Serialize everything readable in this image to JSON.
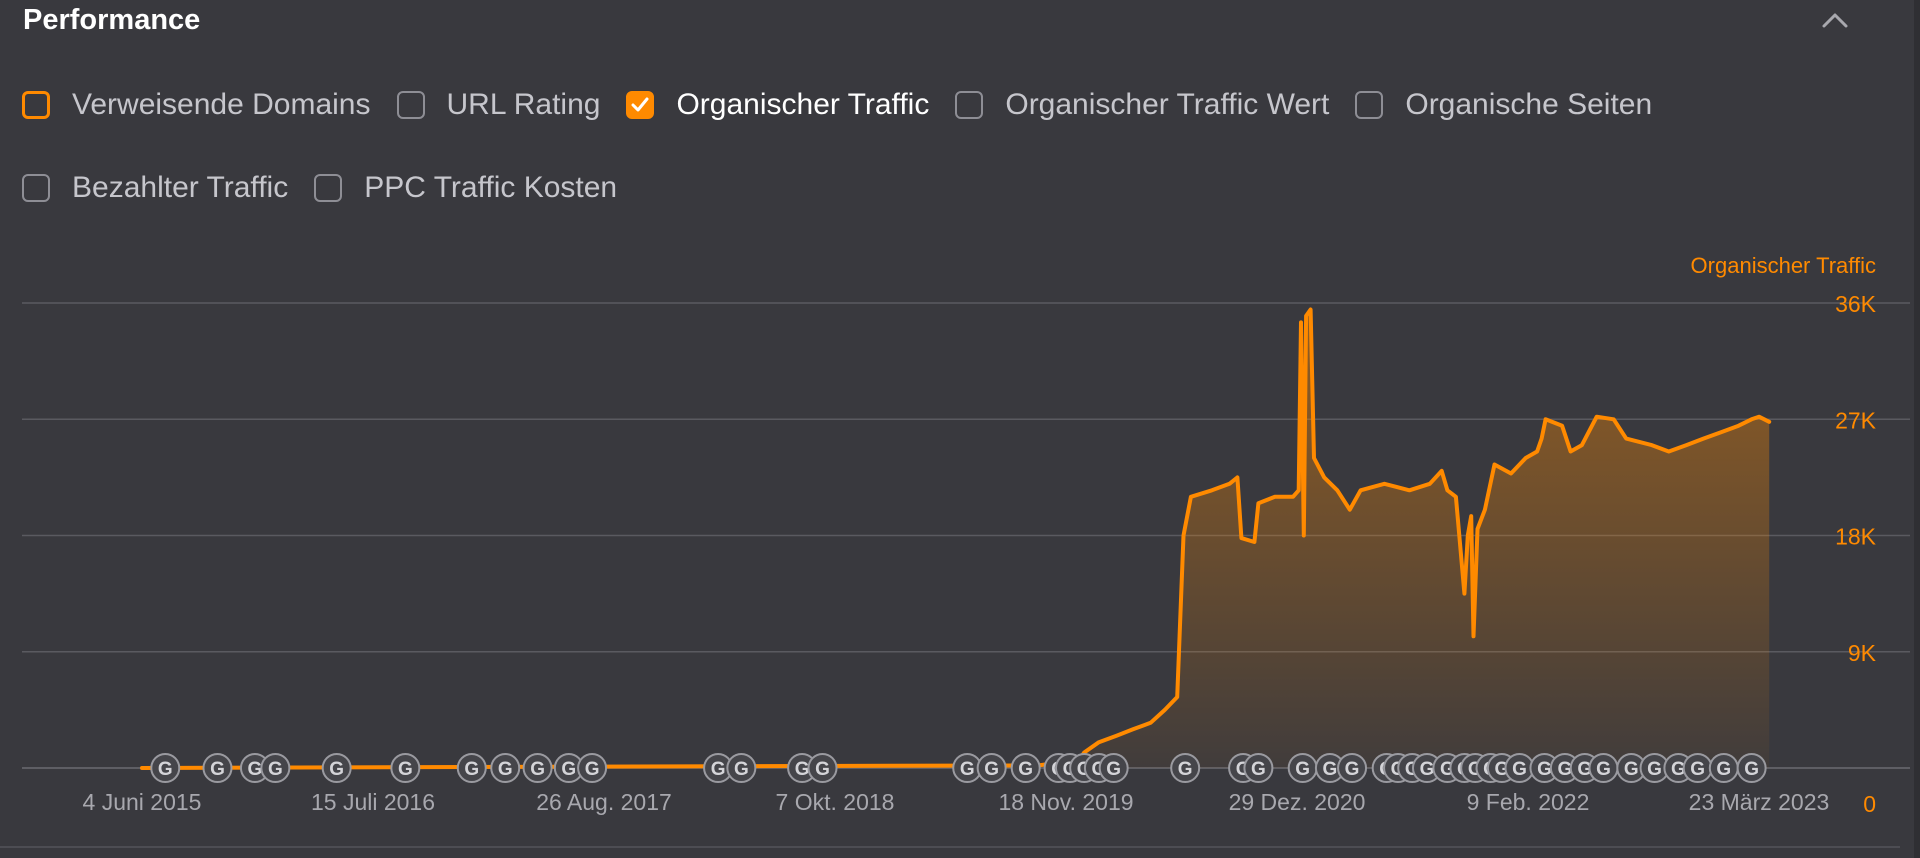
{
  "header": {
    "title": "Performance",
    "collapse_icon": "chevron-up-icon"
  },
  "metrics": [
    {
      "label": "Verweisende Domains",
      "checked": false,
      "focused": true
    },
    {
      "label": "URL Rating",
      "checked": false
    },
    {
      "label": "Organischer Traffic",
      "checked": true
    },
    {
      "label": "Organischer Traffic Wert",
      "checked": false
    },
    {
      "label": "Organische Seiten",
      "checked": false
    },
    {
      "label": "Bezahlter Traffic",
      "checked": false
    },
    {
      "label": "PPC Traffic Kosten",
      "checked": false
    }
  ],
  "colors": {
    "accent": "#ff8a00",
    "background": "#39393e",
    "grid": "#5a5a60",
    "axis_text": "#a8a8ae",
    "marker": "#9a9aa0"
  },
  "chart_data": {
    "type": "area",
    "series": [
      {
        "name": "Organischer Traffic",
        "color": "#ff8a00"
      }
    ],
    "y_ticks": [
      "36K",
      "27K",
      "18K",
      "9K",
      "0"
    ],
    "y_tick_values": [
      36000,
      27000,
      18000,
      9000,
      0
    ],
    "ylim": [
      0,
      36000
    ],
    "x_ticks": [
      "4 Juni 2015",
      "15 Juli 2016",
      "26 Aug. 2017",
      "7 Okt. 2018",
      "18 Nov. 2019",
      "29 Dez. 2020",
      "9 Feb. 2022",
      "23 März 2023"
    ],
    "x_tick_dates": [
      "2015-06-04",
      "2016-07-15",
      "2017-08-26",
      "2018-10-07",
      "2019-11-18",
      "2020-12-29",
      "2022-02-09",
      "2023-03-23"
    ],
    "points": [
      [
        "2015-06-04",
        0
      ],
      [
        "2017-06-01",
        100
      ],
      [
        "2019-10-01",
        200
      ],
      [
        "2019-11-18",
        500
      ],
      [
        "2019-12-05",
        200
      ],
      [
        "2019-12-20",
        1200
      ],
      [
        "2020-01-15",
        2000
      ],
      [
        "2020-02-15",
        2500
      ],
      [
        "2020-03-15",
        3000
      ],
      [
        "2020-04-15",
        3500
      ],
      [
        "2020-05-10",
        4500
      ],
      [
        "2020-06-01",
        5500
      ],
      [
        "2020-06-12",
        18000
      ],
      [
        "2020-06-25",
        21000
      ],
      [
        "2020-08-01",
        21500
      ],
      [
        "2020-09-01",
        22000
      ],
      [
        "2020-09-15",
        22500
      ],
      [
        "2020-09-22",
        17800
      ],
      [
        "2020-10-15",
        17500
      ],
      [
        "2020-10-22",
        20500
      ],
      [
        "2020-11-20",
        21000
      ],
      [
        "2020-12-22",
        21000
      ],
      [
        "2021-01-01",
        21500
      ],
      [
        "2021-01-05",
        34500
      ],
      [
        "2021-01-10",
        18000
      ],
      [
        "2021-01-14",
        35000
      ],
      [
        "2021-01-22",
        35500
      ],
      [
        "2021-01-28",
        24000
      ],
      [
        "2021-02-15",
        22500
      ],
      [
        "2021-03-10",
        21500
      ],
      [
        "2021-04-01",
        20000
      ],
      [
        "2021-04-20",
        21500
      ],
      [
        "2021-06-01",
        22000
      ],
      [
        "2021-07-15",
        21500
      ],
      [
        "2021-08-20",
        22000
      ],
      [
        "2021-09-10",
        23000
      ],
      [
        "2021-09-20",
        21500
      ],
      [
        "2021-10-05",
        21000
      ],
      [
        "2021-10-20",
        13500
      ],
      [
        "2021-10-26",
        18000
      ],
      [
        "2021-11-01",
        19500
      ],
      [
        "2021-11-05",
        10200
      ],
      [
        "2021-11-12",
        18500
      ],
      [
        "2021-11-25",
        20000
      ],
      [
        "2021-12-12",
        23500
      ],
      [
        "2022-01-10",
        22800
      ],
      [
        "2022-02-05",
        24000
      ],
      [
        "2022-02-25",
        24500
      ],
      [
        "2022-03-05",
        25500
      ],
      [
        "2022-03-12",
        27000
      ],
      [
        "2022-04-10",
        26500
      ],
      [
        "2022-04-25",
        24500
      ],
      [
        "2022-05-15",
        25000
      ],
      [
        "2022-06-10",
        27200
      ],
      [
        "2022-07-10",
        27000
      ],
      [
        "2022-08-01",
        25500
      ],
      [
        "2022-09-15",
        25000
      ],
      [
        "2022-10-15",
        24500
      ],
      [
        "2022-11-15",
        25000
      ],
      [
        "2022-12-15",
        25500
      ],
      [
        "2023-01-15",
        26000
      ],
      [
        "2023-02-15",
        26500
      ],
      [
        "2023-03-10",
        27000
      ],
      [
        "2023-03-23",
        27200
      ],
      [
        "2023-04-10",
        26800
      ]
    ],
    "event_markers": {
      "icon": "google-update-icon",
      "dates": [
        "2015-07-15",
        "2015-10-15",
        "2015-12-20",
        "2016-01-25",
        "2016-05-12",
        "2016-09-10",
        "2017-01-05",
        "2017-03-05",
        "2017-05-01",
        "2017-06-25",
        "2017-08-05",
        "2018-03-15",
        "2018-04-25",
        "2018-08-10",
        "2018-09-15",
        "2019-05-28",
        "2019-07-10",
        "2019-09-08",
        "2019-11-05",
        "2019-11-25",
        "2019-12-20",
        "2020-01-15",
        "2020-02-10",
        "2020-06-15",
        "2020-09-25",
        "2020-10-22",
        "2021-01-08",
        "2021-02-25",
        "2021-04-05",
        "2021-06-05",
        "2021-06-25",
        "2021-07-20",
        "2021-08-15",
        "2021-09-20",
        "2021-10-20",
        "2021-11-08",
        "2021-12-05",
        "2021-12-25",
        "2022-01-25",
        "2022-03-10",
        "2022-04-15",
        "2022-05-20",
        "2022-06-22",
        "2022-08-10",
        "2022-09-20",
        "2022-11-01",
        "2022-12-05",
        "2023-01-20",
        "2023-03-10"
      ]
    }
  }
}
